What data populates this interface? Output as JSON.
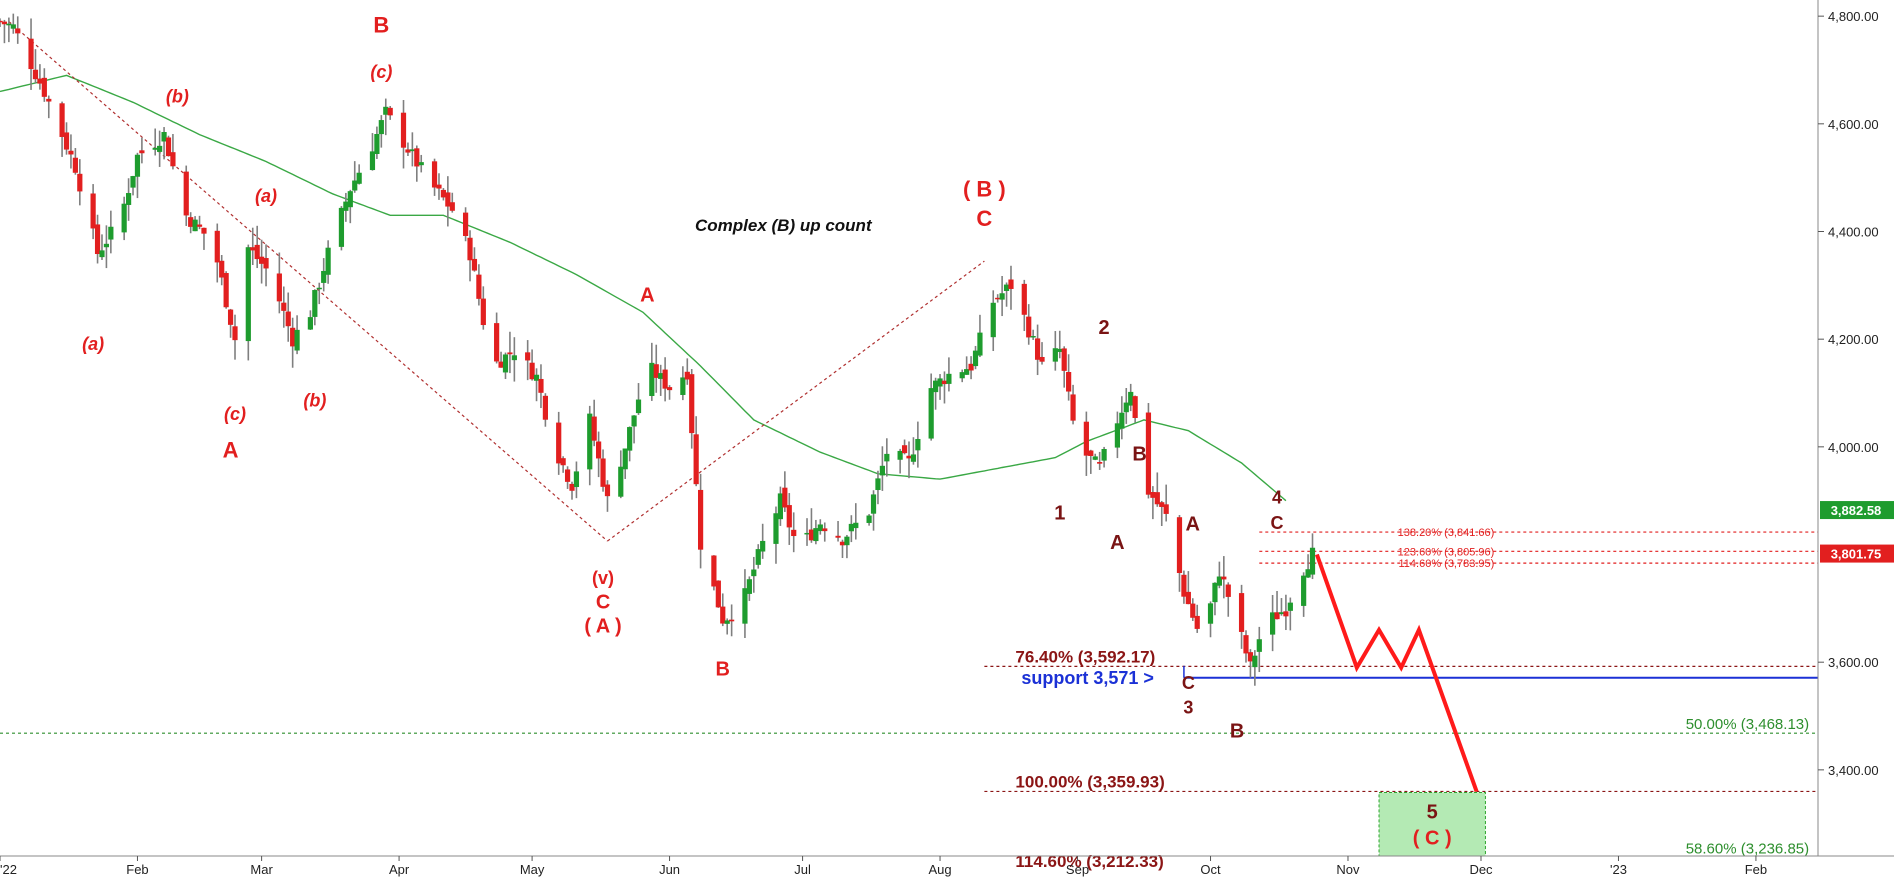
{
  "chart_data": {
    "type": "candlestick",
    "ylim": [
      3240,
      4830
    ],
    "grid": false,
    "x_ticks": [
      {
        "label": "'22",
        "day": 0
      },
      {
        "label": "Feb",
        "day": 31
      },
      {
        "label": "Mar",
        "day": 59
      },
      {
        "label": "Apr",
        "day": 90
      },
      {
        "label": "May",
        "day": 120
      },
      {
        "label": "Jun",
        "day": 151
      },
      {
        "label": "Jul",
        "day": 181
      },
      {
        "label": "Aug",
        "day": 212
      },
      {
        "label": "Sep",
        "day": 243
      },
      {
        "label": "Oct",
        "day": 273
      },
      {
        "label": "Nov",
        "day": 304
      },
      {
        "label": "Dec",
        "day": 334
      },
      {
        "label": "'23",
        "day": 365
      },
      {
        "label": "Feb",
        "day": 396
      }
    ],
    "y_ticks": [
      {
        "label": "4,800.00",
        "value": 4800
      },
      {
        "label": "4,600.00",
        "value": 4600
      },
      {
        "label": "4,400.00",
        "value": 4400
      },
      {
        "label": "4,200.00",
        "value": 4200
      },
      {
        "label": "4,000.00",
        "value": 4000
      },
      {
        "label": "3,600.00",
        "value": 3600
      },
      {
        "label": "3,400.00",
        "value": 3400
      }
    ],
    "price_anchors": [
      {
        "day": 0,
        "price": 4790
      },
      {
        "day": 3,
        "price": 4780
      },
      {
        "day": 10,
        "price": 4660
      },
      {
        "day": 17,
        "price": 4520
      },
      {
        "day": 22,
        "price": 4360
      },
      {
        "day": 27,
        "price": 4420
      },
      {
        "day": 31,
        "price": 4540
      },
      {
        "day": 37,
        "price": 4580
      },
      {
        "day": 42,
        "price": 4430
      },
      {
        "day": 48,
        "price": 4380
      },
      {
        "day": 53,
        "price": 4200
      },
      {
        "day": 56,
        "price": 4370
      },
      {
        "day": 61,
        "price": 4320
      },
      {
        "day": 66,
        "price": 4200
      },
      {
        "day": 70,
        "price": 4250
      },
      {
        "day": 74,
        "price": 4360
      },
      {
        "day": 79,
        "price": 4480
      },
      {
        "day": 84,
        "price": 4560
      },
      {
        "day": 87,
        "price": 4620
      },
      {
        "day": 93,
        "price": 4540
      },
      {
        "day": 97,
        "price": 4490
      },
      {
        "day": 102,
        "price": 4440
      },
      {
        "day": 106,
        "price": 4360
      },
      {
        "day": 111,
        "price": 4150
      },
      {
        "day": 116,
        "price": 4180
      },
      {
        "day": 121,
        "price": 4130
      },
      {
        "day": 125,
        "price": 4000
      },
      {
        "day": 129,
        "price": 3930
      },
      {
        "day": 133,
        "price": 4050
      },
      {
        "day": 137,
        "price": 3900
      },
      {
        "day": 141,
        "price": 4000
      },
      {
        "day": 146,
        "price": 4150
      },
      {
        "day": 151,
        "price": 4110
      },
      {
        "day": 155,
        "price": 4140
      },
      {
        "day": 158,
        "price": 3820
      },
      {
        "day": 163,
        "price": 3680
      },
      {
        "day": 167,
        "price": 3700
      },
      {
        "day": 172,
        "price": 3820
      },
      {
        "day": 176,
        "price": 3900
      },
      {
        "day": 180,
        "price": 3810
      },
      {
        "day": 185,
        "price": 3860
      },
      {
        "day": 190,
        "price": 3830
      },
      {
        "day": 196,
        "price": 3880
      },
      {
        "day": 200,
        "price": 3990
      },
      {
        "day": 205,
        "price": 3970
      },
      {
        "day": 210,
        "price": 4110
      },
      {
        "day": 215,
        "price": 4140
      },
      {
        "day": 219,
        "price": 4150
      },
      {
        "day": 224,
        "price": 4270
      },
      {
        "day": 228,
        "price": 4300
      },
      {
        "day": 231,
        "price": 4240
      },
      {
        "day": 235,
        "price": 4150
      },
      {
        "day": 239,
        "price": 4180
      },
      {
        "day": 243,
        "price": 4000
      },
      {
        "day": 248,
        "price": 3960
      },
      {
        "day": 252,
        "price": 4050
      },
      {
        "day": 255,
        "price": 4110
      },
      {
        "day": 258,
        "price": 3930
      },
      {
        "day": 263,
        "price": 3870
      },
      {
        "day": 267,
        "price": 3730
      },
      {
        "day": 271,
        "price": 3640
      },
      {
        "day": 275,
        "price": 3770
      },
      {
        "day": 278,
        "price": 3700
      },
      {
        "day": 282,
        "price": 3590
      },
      {
        "day": 285,
        "price": 3670
      },
      {
        "day": 290,
        "price": 3700
      },
      {
        "day": 293,
        "price": 3760
      },
      {
        "day": 296,
        "price": 3801
      }
    ],
    "ma_anchors": [
      {
        "day": 0,
        "price": 4660
      },
      {
        "day": 15,
        "price": 4690
      },
      {
        "day": 30,
        "price": 4640
      },
      {
        "day": 45,
        "price": 4580
      },
      {
        "day": 60,
        "price": 4530
      },
      {
        "day": 75,
        "price": 4470
      },
      {
        "day": 88,
        "price": 4430
      },
      {
        "day": 100,
        "price": 4430
      },
      {
        "day": 115,
        "price": 4380
      },
      {
        "day": 130,
        "price": 4320
      },
      {
        "day": 145,
        "price": 4250
      },
      {
        "day": 158,
        "price": 4150
      },
      {
        "day": 170,
        "price": 4050
      },
      {
        "day": 185,
        "price": 3990
      },
      {
        "day": 198,
        "price": 3950
      },
      {
        "day": 212,
        "price": 3940
      },
      {
        "day": 225,
        "price": 3960
      },
      {
        "day": 238,
        "price": 3980
      },
      {
        "day": 245,
        "price": 4010
      },
      {
        "day": 258,
        "price": 4050
      },
      {
        "day": 268,
        "price": 4030
      },
      {
        "day": 280,
        "price": 3970
      },
      {
        "day": 290,
        "price": 3900
      }
    ],
    "trend_lines": [
      [
        {
          "day": 2,
          "price": 4790
        },
        {
          "day": 137,
          "price": 3825
        }
      ],
      [
        {
          "day": 137,
          "price": 3825
        },
        {
          "day": 222,
          "price": 4345
        }
      ]
    ],
    "projection": [
      {
        "day": 297,
        "price": 3800
      },
      {
        "day": 306,
        "price": 3590
      },
      {
        "day": 311,
        "price": 3660
      },
      {
        "day": 316,
        "price": 3590
      },
      {
        "day": 320,
        "price": 3660
      },
      {
        "day": 333,
        "price": 3360
      }
    ],
    "support": {
      "label": "support 3,571 >",
      "value": 3571,
      "from_day": 267
    },
    "fib_levels": [
      {
        "label": "138.20% (3,841.66)",
        "value": 3841.66
      },
      {
        "label": "123.60% (3,805.96)",
        "value": 3805.96
      },
      {
        "label": "114.60% (3,783.95)",
        "value": 3783.95
      },
      {
        "label": "76.40% (3,592.17)",
        "value": 3592.17
      },
      {
        "label": "50.00% (3,468.13)",
        "value": 3468.13
      },
      {
        "label": "100.00% (3,359.93)",
        "value": 3359.93
      },
      {
        "label": "58.60% (3,236.85)",
        "value": 3236.85
      },
      {
        "label": "114.60% (3,212.33)",
        "value": 3212.33
      }
    ],
    "target_box": {
      "day_from": 311,
      "day_to": 335,
      "price_top": 3358,
      "price_bottom": 3240,
      "labels": [
        "5",
        "( C )"
      ]
    },
    "price_tags": [
      {
        "label": "3,882.58",
        "value": 3882.58,
        "color": "#1e9c2e"
      },
      {
        "label": "3,801.75",
        "value": 3801.75,
        "color": "#e21f1f"
      }
    ],
    "annotation": "Complex (B) up count",
    "wave_labels": [
      {
        "text": "B",
        "day": 86,
        "price": 4770,
        "color": "#e21f1f",
        "italic": false,
        "size": 22
      },
      {
        "text": "(c)",
        "day": 86,
        "price": 4685,
        "color": "#e21f1f",
        "italic": true,
        "size": 18
      },
      {
        "text": "(b)",
        "day": 40,
        "price": 4640,
        "color": "#e21f1f",
        "italic": true,
        "size": 18
      },
      {
        "text": "(a)",
        "day": 60,
        "price": 4455,
        "color": "#e21f1f",
        "italic": true,
        "size": 18
      },
      {
        "text": "(a)",
        "day": 21,
        "price": 4180,
        "color": "#e21f1f",
        "italic": true,
        "size": 18
      },
      {
        "text": "(c)",
        "day": 53,
        "price": 4050,
        "color": "#e21f1f",
        "italic": true,
        "size": 18
      },
      {
        "text": "(b)",
        "day": 71,
        "price": 4075,
        "color": "#e21f1f",
        "italic": true,
        "size": 18
      },
      {
        "text": "A",
        "day": 52,
        "price": 3980,
        "color": "#e21f1f",
        "italic": false,
        "size": 22
      },
      {
        "text": "A",
        "day": 146,
        "price": 4270,
        "color": "#e21f1f",
        "italic": false,
        "size": 20
      },
      {
        "text": "(v)",
        "day": 136,
        "price": 3745,
        "color": "#e21f1f",
        "italic": false,
        "size": 18
      },
      {
        "text": "C",
        "day": 136,
        "price": 3700,
        "color": "#e21f1f",
        "italic": false,
        "size": 20
      },
      {
        "text": "( A )",
        "day": 136,
        "price": 3655,
        "color": "#e21f1f",
        "italic": false,
        "size": 20
      },
      {
        "text": "B",
        "day": 163,
        "price": 3575,
        "color": "#e21f1f",
        "italic": false,
        "size": 20
      },
      {
        "text": "( B )",
        "day": 222,
        "price": 4465,
        "color": "#e21f1f",
        "italic": false,
        "size": 22
      },
      {
        "text": "C",
        "day": 222,
        "price": 4410,
        "color": "#e21f1f",
        "italic": false,
        "size": 22
      },
      {
        "text": "2",
        "day": 249,
        "price": 4210,
        "color": "#7a1414",
        "italic": false,
        "size": 20
      },
      {
        "text": "B",
        "day": 257,
        "price": 3975,
        "color": "#7a1414",
        "italic": false,
        "size": 20
      },
      {
        "text": "1",
        "day": 239,
        "price": 3865,
        "color": "#7a1414",
        "italic": false,
        "size": 20
      },
      {
        "text": "A",
        "day": 252,
        "price": 3810,
        "color": "#7a1414",
        "italic": false,
        "size": 20
      },
      {
        "text": "A",
        "day": 269,
        "price": 3845,
        "color": "#7a1414",
        "italic": false,
        "size": 20
      },
      {
        "text": "4",
        "day": 288,
        "price": 3895,
        "color": "#7a1414",
        "italic": false,
        "size": 18
      },
      {
        "text": "C",
        "day": 288,
        "price": 3847,
        "color": "#7a1414",
        "italic": false,
        "size": 18
      },
      {
        "text": "C",
        "day": 268,
        "price": 3550,
        "color": "#7a1414",
        "italic": false,
        "size": 18
      },
      {
        "text": "3",
        "day": 268,
        "price": 3505,
        "color": "#7a1414",
        "italic": false,
        "size": 18
      },
      {
        "text": "B",
        "day": 279,
        "price": 3460,
        "color": "#7a1414",
        "italic": false,
        "size": 20
      }
    ]
  },
  "colors": {
    "up": "#1e9c2e",
    "down": "#e21f1f",
    "wick": "#7f7f7f",
    "ma": "#3aa845",
    "trend": "#b03030",
    "projection": "#ff1a1a",
    "support": "#1b31d6",
    "fib_dark": "#8b1515",
    "fib_red": "#e21f1f",
    "fib_green": "#2e8f2e",
    "target_fill": "#9be39b",
    "target_border": "#2ea52e"
  }
}
